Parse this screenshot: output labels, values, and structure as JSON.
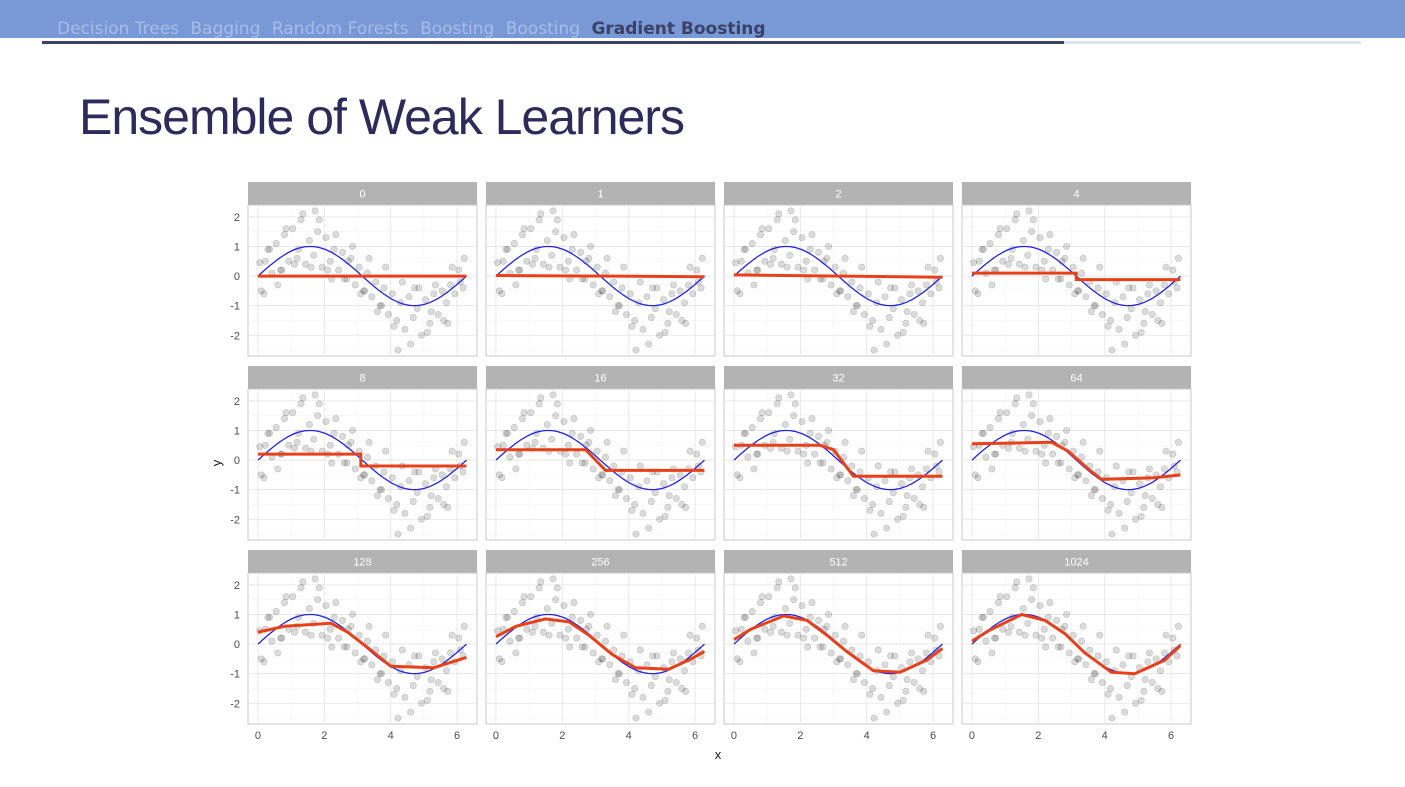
{
  "nav": {
    "tabs": [
      {
        "label": "Decision Trees",
        "active": false
      },
      {
        "label": "Bagging",
        "active": false
      },
      {
        "label": "Random Forests",
        "active": false
      },
      {
        "label": "Boosting",
        "active": false
      },
      {
        "label": "Boosting",
        "active": false
      },
      {
        "label": "Gradient Boosting",
        "active": true
      }
    ]
  },
  "slide": {
    "title": "Ensemble of Weak Learners"
  },
  "colors": {
    "topbar": "#7898d6",
    "strip": "#b3b3b3",
    "true_curve": "#2222ee",
    "fit": "#e8411a",
    "points": "#000000",
    "title": "#2e2a5a"
  },
  "chart_data": {
    "type": "scatter",
    "layout": "faceted 3x4 grid",
    "xlabel": "x",
    "ylabel": "y",
    "xlim": [
      -0.3,
      6.6
    ],
    "ylim": [
      -2.7,
      2.4
    ],
    "xticks": [
      0,
      2,
      4,
      6
    ],
    "yticks": [
      -2,
      -1,
      0,
      1,
      2
    ],
    "grid": true,
    "points": {
      "x": [
        0.05,
        0.18,
        0.3,
        0.42,
        0.55,
        0.68,
        0.8,
        0.93,
        1.05,
        1.18,
        1.3,
        1.43,
        1.55,
        1.68,
        1.8,
        1.93,
        2.05,
        2.18,
        2.3,
        2.43,
        2.55,
        2.68,
        2.8,
        2.93,
        3.05,
        3.18,
        3.3,
        3.43,
        3.55,
        3.68,
        3.8,
        3.93,
        4.05,
        4.18,
        4.3,
        4.43,
        4.55,
        4.68,
        4.8,
        4.93,
        5.05,
        5.18,
        5.3,
        5.43,
        5.55,
        5.68,
        5.8,
        5.93,
        6.05,
        6.18,
        0.1,
        0.35,
        0.6,
        0.85,
        1.1,
        1.35,
        1.6,
        1.85,
        2.1,
        2.35,
        2.6,
        2.85,
        3.1,
        3.35,
        3.6,
        3.85,
        4.1,
        4.35,
        4.6,
        4.85,
        5.1,
        5.35,
        5.6,
        5.85,
        6.1,
        0.22,
        0.72,
        1.22,
        1.72,
        2.22,
        2.72,
        3.22,
        3.72,
        4.22,
        4.72,
        5.22,
        5.72,
        6.22
      ],
      "y": [
        0.45,
        -0.6,
        0.9,
        0.1,
        1.1,
        0.2,
        1.4,
        0.5,
        1.6,
        0.6,
        1.9,
        0.4,
        1.2,
        0.7,
        1.5,
        0.3,
        1.3,
        0.5,
        0.9,
        0.2,
        0.8,
        -0.1,
        0.6,
        -0.3,
        0.3,
        -0.5,
        0.1,
        -0.7,
        -0.2,
        -1.0,
        -0.4,
        -1.3,
        -0.6,
        -1.5,
        -0.9,
        -1.8,
        -0.7,
        -1.4,
        -1.1,
        -2.0,
        -0.8,
        -1.6,
        -0.6,
        -1.3,
        -0.5,
        -0.9,
        -0.3,
        -0.6,
        0.2,
        -0.4,
        -0.5,
        0.9,
        -0.3,
        1.6,
        0.4,
        2.1,
        0.3,
        1.9,
        0.2,
        1.4,
        -0.1,
        1.0,
        -0.6,
        0.6,
        -1.2,
        0.3,
        -1.7,
        -0.2,
        -2.3,
        -0.4,
        -1.9,
        -0.3,
        -1.5,
        0.3,
        -0.2,
        0.5,
        0.2,
        0.9,
        2.2,
        -0.1,
        0.5,
        -0.5,
        -1.0,
        -2.5,
        -0.4,
        -1.2,
        -1.6,
        0.6
      ]
    },
    "true_function": "sin(x)",
    "facets": [
      {
        "label": "0",
        "fit": [
          [
            0,
            0
          ],
          [
            6.28,
            0
          ]
        ]
      },
      {
        "label": "1",
        "fit": [
          [
            0,
            0.02
          ],
          [
            6.28,
            -0.02
          ]
        ]
      },
      {
        "label": "2",
        "fit": [
          [
            0,
            0.04
          ],
          [
            6.28,
            -0.04
          ]
        ]
      },
      {
        "label": "4",
        "fit": [
          [
            0,
            0.1
          ],
          [
            3.14,
            0.1
          ],
          [
            3.14,
            -0.12
          ],
          [
            6.28,
            -0.12
          ]
        ]
      },
      {
        "label": "8",
        "fit": [
          [
            0,
            0.2
          ],
          [
            3.1,
            0.2
          ],
          [
            3.1,
            -0.2
          ],
          [
            6.28,
            -0.2
          ]
        ]
      },
      {
        "label": "16",
        "fit": [
          [
            0,
            0.35
          ],
          [
            2.7,
            0.35
          ],
          [
            3.3,
            -0.35
          ],
          [
            6.28,
            -0.35
          ]
        ]
      },
      {
        "label": "32",
        "fit": [
          [
            0,
            0.5
          ],
          [
            2.6,
            0.5
          ],
          [
            3.0,
            0.35
          ],
          [
            3.6,
            -0.55
          ],
          [
            6.28,
            -0.55
          ]
        ]
      },
      {
        "label": "64",
        "fit": [
          [
            0,
            0.55
          ],
          [
            2.4,
            0.6
          ],
          [
            2.9,
            0.3
          ],
          [
            3.5,
            -0.3
          ],
          [
            3.9,
            -0.65
          ],
          [
            5.5,
            -0.6
          ],
          [
            6.28,
            -0.5
          ]
        ]
      },
      {
        "label": "128",
        "fit": [
          [
            0,
            0.4
          ],
          [
            0.8,
            0.6
          ],
          [
            2.2,
            0.7
          ],
          [
            2.7,
            0.4
          ],
          [
            3.4,
            -0.2
          ],
          [
            4.0,
            -0.75
          ],
          [
            5.3,
            -0.8
          ],
          [
            6.28,
            -0.45
          ]
        ]
      },
      {
        "label": "256",
        "fit": [
          [
            0,
            0.25
          ],
          [
            0.6,
            0.6
          ],
          [
            1.5,
            0.85
          ],
          [
            2.2,
            0.75
          ],
          [
            2.8,
            0.3
          ],
          [
            3.5,
            -0.35
          ],
          [
            4.2,
            -0.8
          ],
          [
            5.2,
            -0.85
          ],
          [
            5.8,
            -0.55
          ],
          [
            6.28,
            -0.25
          ]
        ]
      },
      {
        "label": "512",
        "fit": [
          [
            0,
            0.15
          ],
          [
            0.5,
            0.5
          ],
          [
            1.5,
            0.95
          ],
          [
            2.2,
            0.8
          ],
          [
            2.8,
            0.3
          ],
          [
            3.4,
            -0.25
          ],
          [
            4.2,
            -0.9
          ],
          [
            5.0,
            -0.95
          ],
          [
            5.8,
            -0.55
          ],
          [
            6.28,
            -0.15
          ]
        ]
      },
      {
        "label": "1024",
        "fit": [
          [
            0,
            0.1
          ],
          [
            0.5,
            0.45
          ],
          [
            1.5,
            1.0
          ],
          [
            2.2,
            0.8
          ],
          [
            2.8,
            0.35
          ],
          [
            3.4,
            -0.3
          ],
          [
            4.2,
            -0.95
          ],
          [
            4.9,
            -1.0
          ],
          [
            5.8,
            -0.55
          ],
          [
            6.28,
            -0.05
          ]
        ]
      }
    ]
  }
}
